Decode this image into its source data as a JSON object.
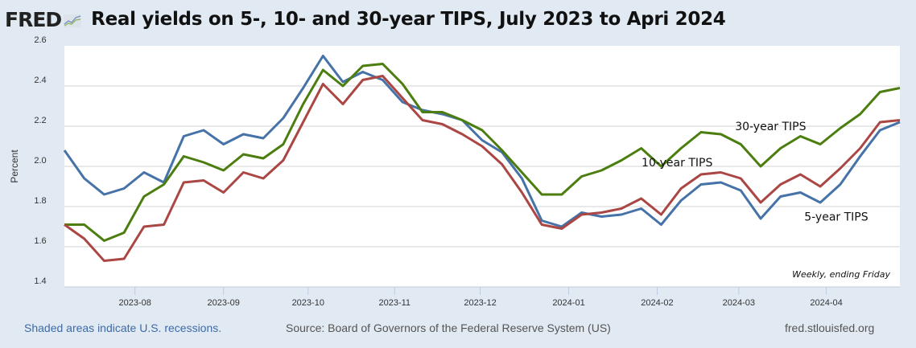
{
  "header": {
    "logo": "FRED",
    "logo_icon": "line-chart-icon",
    "title": "Real yields on 5-, 10- and 30-year TIPS, July 2023 to Apri 2024"
  },
  "footer": {
    "recessions_note": "Shaded areas indicate U.S. recessions.",
    "source": "Source: Board of Governors of the Federal Reserve System (US)",
    "site": "fred.stlouisfed.org"
  },
  "chart_data": {
    "type": "line",
    "title": "Real yields on 5-, 10- and 30-year TIPS, July 2023 to Apri 2024",
    "xlabel": "",
    "ylabel": "Percent",
    "ylim": [
      1.4,
      2.6
    ],
    "yticks": [
      "1.4",
      "1.6",
      "1.8",
      "2.0",
      "2.2",
      "2.4",
      "2.6"
    ],
    "xticks": [
      {
        "label": "2023-08",
        "index": 3.55
      },
      {
        "label": "2023-09",
        "index": 8.0
      },
      {
        "label": "2023-10",
        "index": 12.25
      },
      {
        "label": "2023-11",
        "index": 16.6
      },
      {
        "label": "2023-12",
        "index": 20.9
      },
      {
        "label": "2024-01",
        "index": 25.35
      },
      {
        "label": "2024-02",
        "index": 29.8
      },
      {
        "label": "2024-03",
        "index": 33.9
      },
      {
        "label": "2024-04",
        "index": 38.3
      }
    ],
    "grid": true,
    "annotation": "Weekly, ending Friday",
    "frequency": "Weekly, ending Friday",
    "series": [
      {
        "name": "5-year TIPS",
        "label": "5-year TIPS",
        "color": "#4572a7",
        "values": [
          2.08,
          1.94,
          1.86,
          1.89,
          1.97,
          1.92,
          2.15,
          2.18,
          2.11,
          2.16,
          2.14,
          2.24,
          2.39,
          2.55,
          2.42,
          2.47,
          2.43,
          2.32,
          2.28,
          2.26,
          2.23,
          2.13,
          2.07,
          1.94,
          1.73,
          1.7,
          1.77,
          1.75,
          1.76,
          1.79,
          1.71,
          1.83,
          1.91,
          1.92,
          1.88,
          1.74,
          1.85,
          1.87,
          1.82,
          1.91,
          2.05,
          2.18,
          2.22
        ]
      },
      {
        "name": "10-year TIPS",
        "label": "10-year TIPS",
        "color": "#aa4643",
        "values": [
          1.71,
          1.64,
          1.53,
          1.54,
          1.7,
          1.71,
          1.92,
          1.93,
          1.87,
          1.97,
          1.94,
          2.03,
          2.22,
          2.41,
          2.31,
          2.43,
          2.45,
          2.34,
          2.23,
          2.21,
          2.16,
          2.1,
          2.01,
          1.87,
          1.71,
          1.69,
          1.76,
          1.77,
          1.79,
          1.84,
          1.76,
          1.89,
          1.96,
          1.97,
          1.94,
          1.82,
          1.91,
          1.96,
          1.9,
          1.99,
          2.09,
          2.22,
          2.23
        ]
      },
      {
        "name": "30-year TIPS",
        "label": "30-year TIPS",
        "color": "#4b7d0f",
        "values": [
          1.71,
          1.71,
          1.63,
          1.67,
          1.85,
          1.91,
          2.05,
          2.02,
          1.98,
          2.06,
          2.04,
          2.11,
          2.31,
          2.48,
          2.4,
          2.5,
          2.51,
          2.41,
          2.27,
          2.27,
          2.23,
          2.18,
          2.08,
          1.97,
          1.86,
          1.86,
          1.95,
          1.98,
          2.03,
          2.09,
          2.0,
          2.09,
          2.17,
          2.16,
          2.11,
          2.0,
          2.09,
          2.15,
          2.11,
          2.19,
          2.26,
          2.37,
          2.39
        ]
      }
    ],
    "series_labels": [
      {
        "series": "30-year TIPS",
        "text": "30-year TIPS",
        "index": 35.5,
        "value": 2.18
      },
      {
        "series": "10-year TIPS",
        "text": "10-year TIPS",
        "index": 30.8,
        "value": 2.0
      },
      {
        "series": "5-year TIPS",
        "text": "5-year TIPS",
        "index": 38.8,
        "value": 1.73
      }
    ]
  }
}
